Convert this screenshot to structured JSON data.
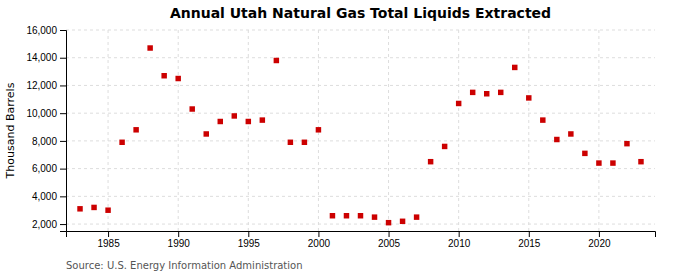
{
  "chart_data": {
    "type": "scatter",
    "title": "Annual Utah Natural Gas Total Liquids Extracted",
    "ylabel": "Thousand Barrels",
    "annotations": [
      "Source: U.S. Energy Information Administration"
    ],
    "color": "#cc0000",
    "marker": "square",
    "grid": true,
    "xlim": [
      1982,
      2024
    ],
    "xticks": [
      1985,
      1990,
      1995,
      2000,
      2005,
      2010,
      2015,
      2020
    ],
    "ylim": [
      1500,
      16000
    ],
    "yticks": [
      {
        "value": 2000,
        "label": "2,000"
      },
      {
        "value": 4000,
        "label": "4,000"
      },
      {
        "value": 6000,
        "label": "6,000"
      },
      {
        "value": 8000,
        "label": "8,000"
      },
      {
        "value": 10000,
        "label": "10,000"
      },
      {
        "value": 12000,
        "label": "12,000"
      },
      {
        "value": 14000,
        "label": "14,000"
      },
      {
        "value": 16000,
        "label": "16,000"
      }
    ],
    "x": [
      1983,
      1984,
      1985,
      1986,
      1987,
      1988,
      1989,
      1990,
      1991,
      1992,
      1993,
      1994,
      1995,
      1996,
      1997,
      1998,
      1999,
      2000,
      2001,
      2002,
      2003,
      2004,
      2005,
      2006,
      2007,
      2008,
      2009,
      2010,
      2011,
      2012,
      2013,
      2014,
      2015,
      2016,
      2017,
      2018,
      2019,
      2020,
      2021,
      2022,
      2023
    ],
    "values": [
      3100,
      3200,
      3000,
      7900,
      8800,
      14700,
      12700,
      12500,
      10300,
      8500,
      9400,
      9800,
      9400,
      9500,
      13800,
      7900,
      7900,
      8800,
      2600,
      2600,
      2600,
      2500,
      2100,
      2200,
      2500,
      6500,
      7600,
      10700,
      11500,
      11400,
      11500,
      13300,
      11100,
      9500,
      8100,
      8500,
      7100,
      6400,
      6400,
      7800,
      6500
    ]
  }
}
